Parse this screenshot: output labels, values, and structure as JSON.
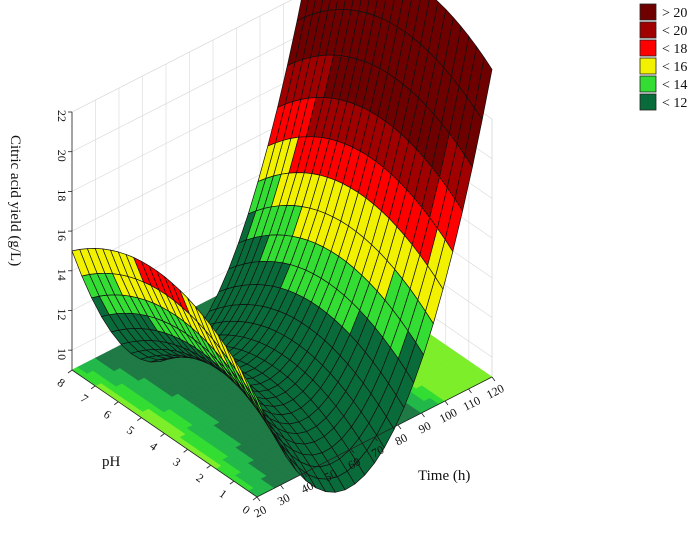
{
  "chart_data": {
    "type": "surface3d",
    "title": "",
    "xlabel": "Time (h)",
    "ylabel": "pH",
    "zlabel": "Citric acid yield (g/L)",
    "xlim": [
      20,
      120
    ],
    "ylim": [
      0,
      8
    ],
    "zlim": [
      9,
      22
    ],
    "x_ticks": [
      20,
      30,
      40,
      50,
      60,
      70,
      80,
      90,
      100,
      110,
      120
    ],
    "y_ticks": [
      0,
      1,
      2,
      3,
      4,
      5,
      6,
      7,
      8
    ],
    "z_ticks": [
      10,
      12,
      14,
      16,
      18,
      20,
      22
    ],
    "corner_values": [
      {
        "time": 20,
        "pH": 0,
        "yield": 14.0
      },
      {
        "time": 20,
        "pH": 8,
        "yield": 15.0
      },
      {
        "time": 120,
        "pH": 0,
        "yield": 14.7
      },
      {
        "time": 120,
        "pH": 8,
        "yield": 23.0
      }
    ],
    "minimum": {
      "time": 60,
      "pH": 4,
      "yield": 9.5
    },
    "legend": {
      "position": "top-right",
      "items": [
        {
          "label": "> 20",
          "color": "#6e0000"
        },
        {
          "label": "< 20",
          "color": "#a00000"
        },
        {
          "label": "< 18",
          "color": "#ff0000"
        },
        {
          "label": "< 16",
          "color": "#f2f200"
        },
        {
          "label": "< 14",
          "color": "#33dd33"
        },
        {
          "label": "< 12",
          "color": "#0a6b3a"
        }
      ]
    },
    "grid": true,
    "floor_contour_projection": true
  }
}
